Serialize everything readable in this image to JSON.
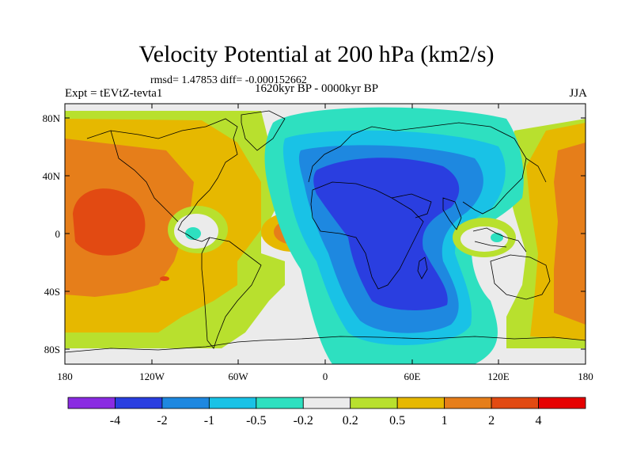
{
  "plot": {
    "title": "Velocity Potential at 200 hPa (km2/s)",
    "stats": "rmsd= 1.47853 diff= -0.000152662",
    "experiment": "Expt = tEVtZ-tevta1",
    "period": "1620kyr BP - 0000kyr BP",
    "season": "JJA"
  },
  "axes": {
    "lat_labels": [
      "80N",
      "40N",
      "0",
      "40S",
      "80S"
    ],
    "lon_labels": [
      "180",
      "120W",
      "60W",
      "0",
      "60E",
      "120E",
      "180"
    ]
  },
  "colorbar": {
    "labels": [
      "-4",
      "-2",
      "-1",
      "-0.5",
      "-0.2",
      "0.2",
      "0.5",
      "1",
      "2",
      "4"
    ],
    "colors": [
      "#8a2be2",
      "#2a3ee0",
      "#1e88e0",
      "#19c2e6",
      "#2ee0c0",
      "#ebebeb",
      "#b8e02e",
      "#e6b800",
      "#e67e1a",
      "#e24a12",
      "#e60000"
    ]
  },
  "fill_colors": {
    "land_outline": "#000000",
    "neutral": "#ebebeb",
    "pos_weak": "#b8e02e",
    "pos_mid": "#e6b800",
    "pos_strong": "#e67e1a",
    "pos_max": "#e24a12",
    "neg_weak": "#2ee0c0",
    "neg_mid": "#19c2e6",
    "neg_strong": "#1e88e0",
    "neg_max": "#2a3ee0"
  }
}
